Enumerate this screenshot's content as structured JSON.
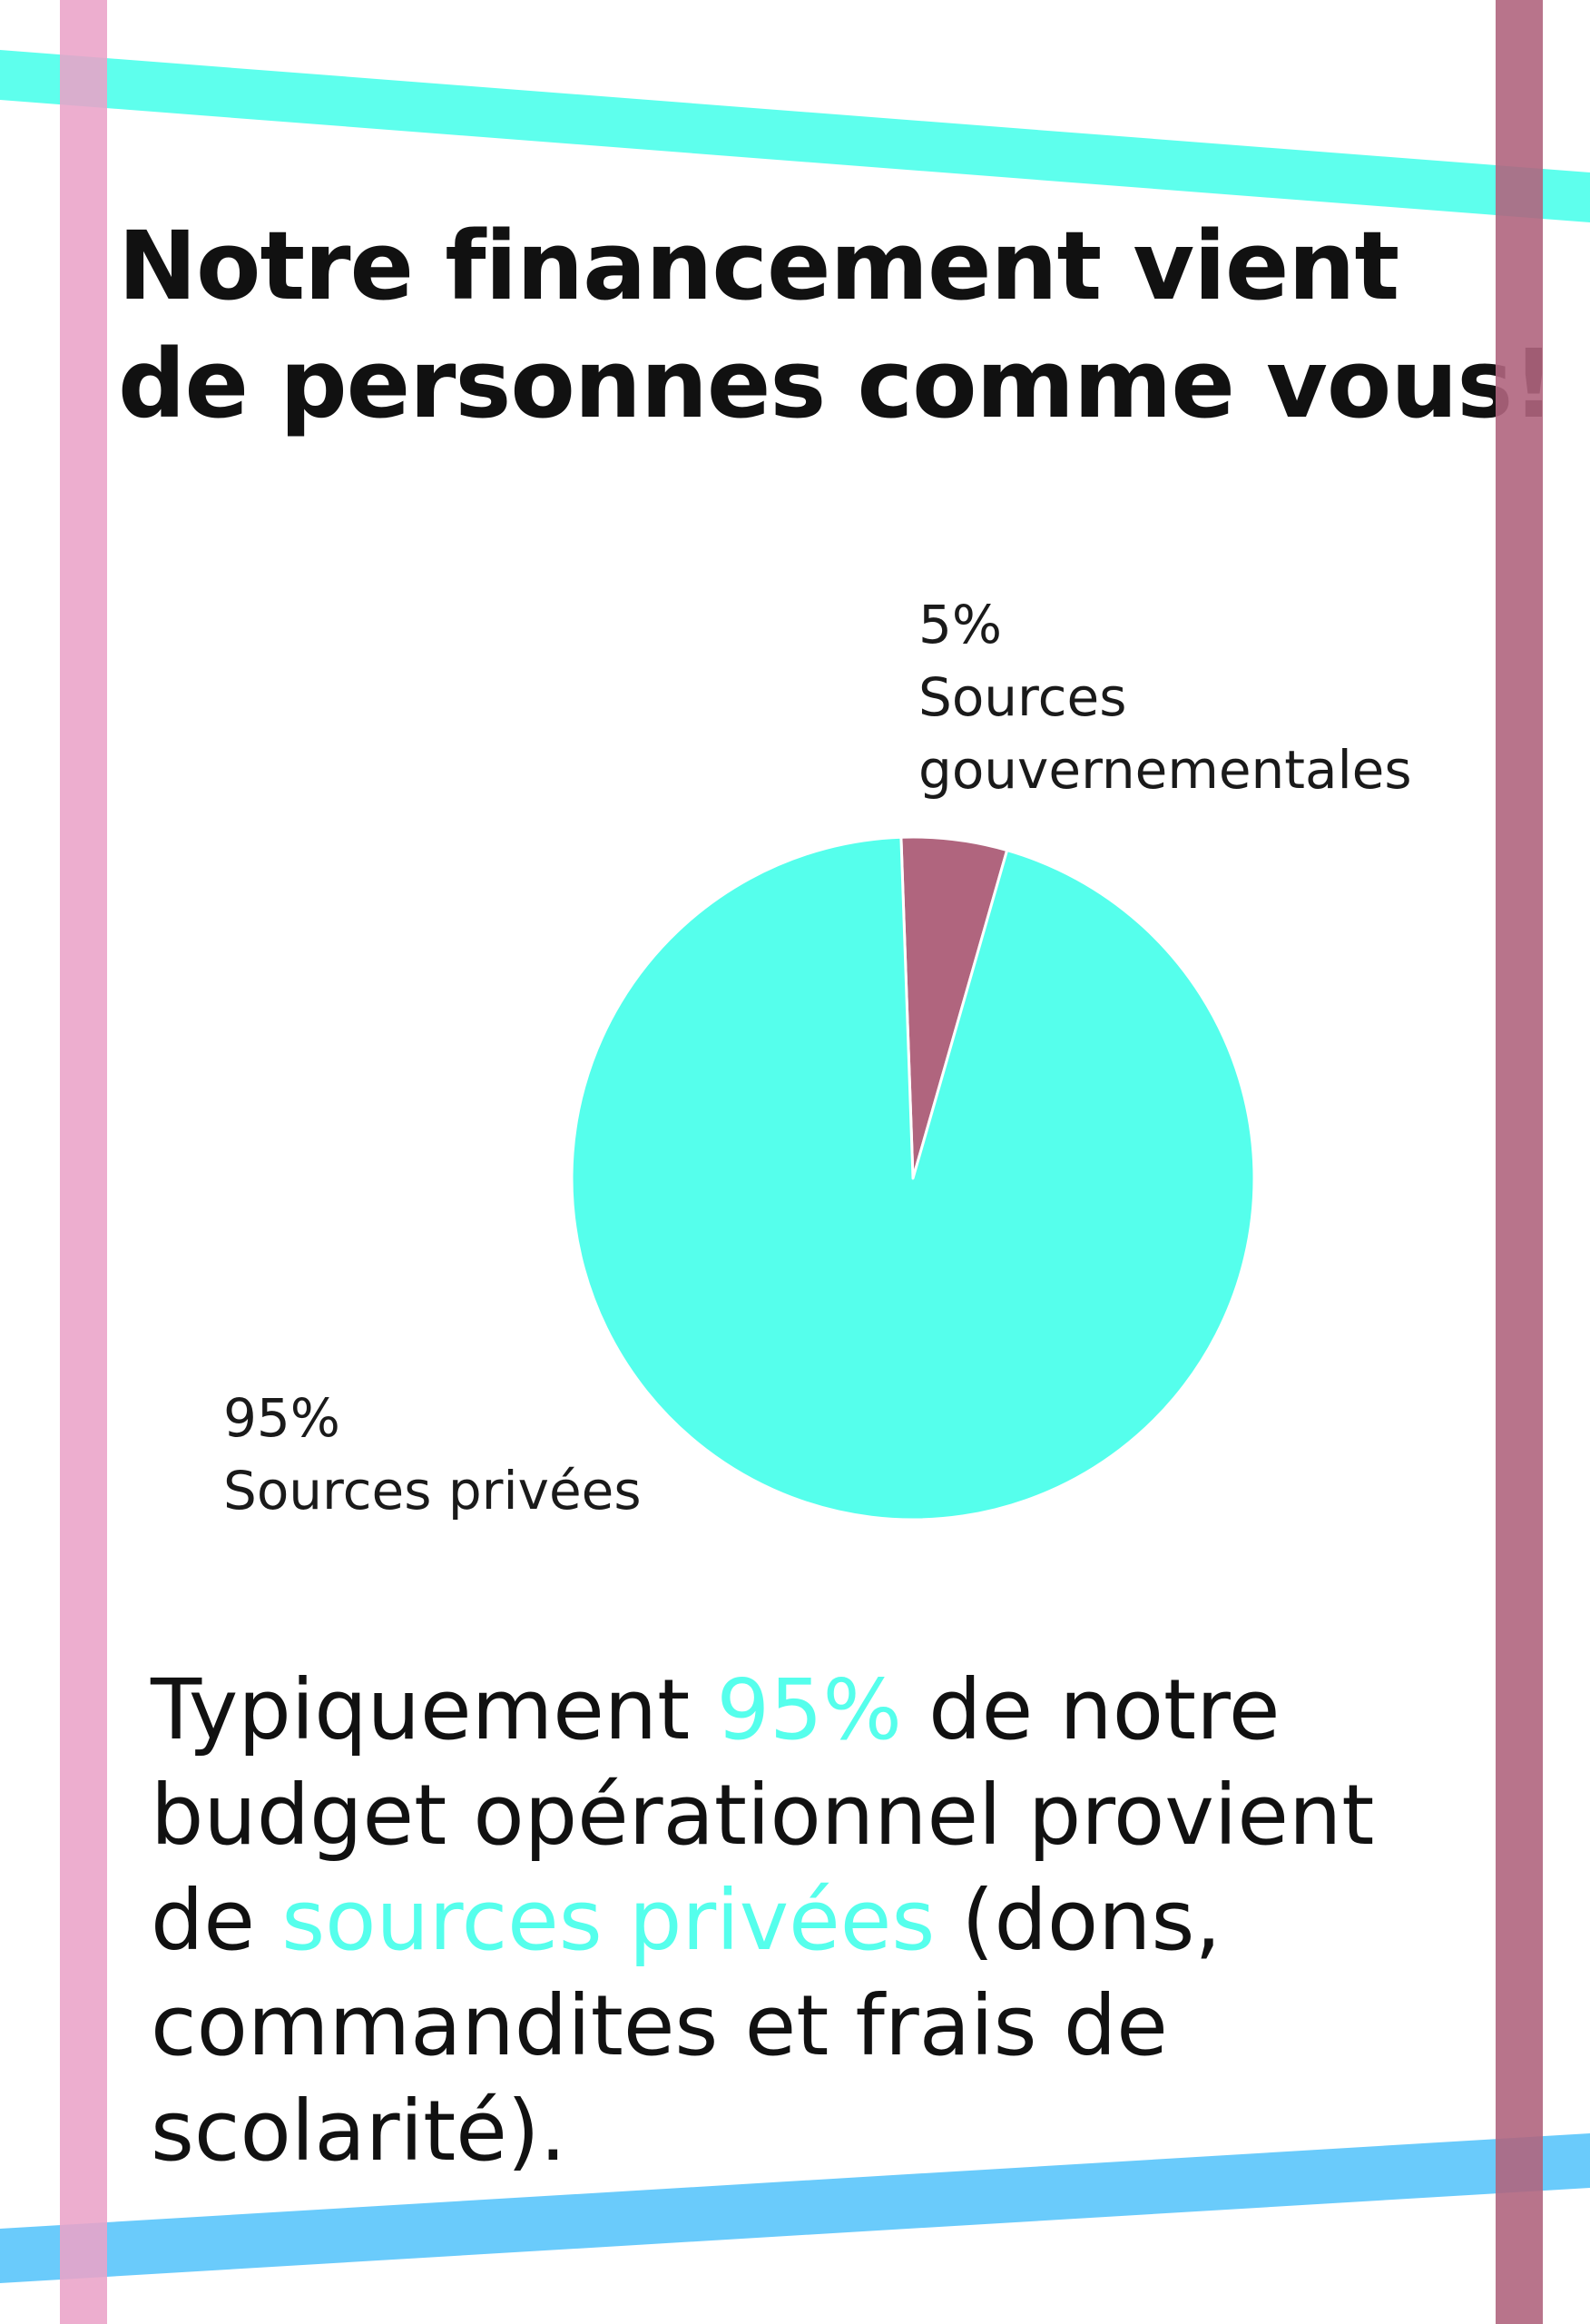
{
  "colors": {
    "accent": "#55ffec",
    "government": "#b0657e",
    "stripe_pink": "#eba3c8",
    "stripe_mauve": "#b0657e",
    "stripe_cyan": "#55ffec",
    "stripe_blue": "#62c8fb"
  },
  "title": {
    "line1": "Notre financement vient",
    "line2": "de personnes comme vous!"
  },
  "chart_data": {
    "type": "pie",
    "slices": [
      {
        "label": "Sources gouvernementales",
        "value": 5,
        "value_label": "5%",
        "color": "#b0657e"
      },
      {
        "label": "Sources privées",
        "value": 95,
        "value_label": "95%",
        "color": "#55ffec"
      }
    ]
  },
  "body": {
    "l1_a": "Typiquement ",
    "l1_hl": "95%",
    "l1_b": " de notre",
    "l2": "budget opérationnel provient",
    "l3_a": "de ",
    "l3_hl": "sources privées",
    "l3_b": " (dons,",
    "l4": "commandites et frais de",
    "l5": "scolarité)."
  }
}
